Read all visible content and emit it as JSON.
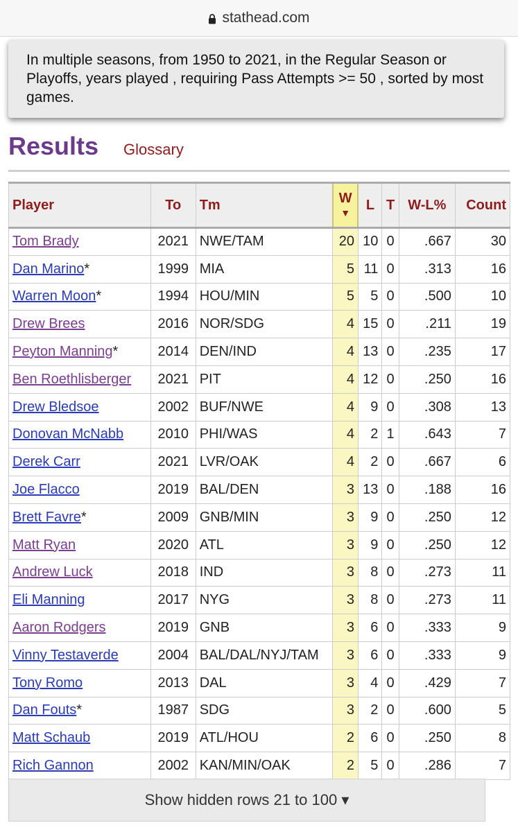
{
  "browser": {
    "domain": "stathead.com"
  },
  "summary": {
    "text": "In multiple seasons, from 1950 to 2021, in the Regular Season or Playoffs, years played , requiring Pass Attempts >= 50 , sorted by most games."
  },
  "heading": {
    "title": "Results",
    "glossary": "Glossary"
  },
  "table": {
    "columns": {
      "player": "Player",
      "to": "To",
      "tm": "Tm",
      "w": "W",
      "l": "L",
      "t": "T",
      "wl": "W-L%",
      "count": "Count"
    },
    "rows": [
      {
        "player": "Tom Brady",
        "hof": "",
        "to": "2021",
        "tm": "NWE/TAM",
        "w": "20",
        "l": "10",
        "t": "0",
        "wl": ".667",
        "count": "30"
      },
      {
        "player": "Dan Marino",
        "hof": "*",
        "to": "1999",
        "tm": "MIA",
        "w": "5",
        "l": "11",
        "t": "0",
        "wl": ".313",
        "count": "16"
      },
      {
        "player": "Warren Moon",
        "hof": "*",
        "to": "1994",
        "tm": "HOU/MIN",
        "w": "5",
        "l": "5",
        "t": "0",
        "wl": ".500",
        "count": "10"
      },
      {
        "player": "Drew Brees",
        "hof": "",
        "to": "2016",
        "tm": "NOR/SDG",
        "w": "4",
        "l": "15",
        "t": "0",
        "wl": ".211",
        "count": "19"
      },
      {
        "player": "Peyton Manning",
        "hof": "*",
        "to": "2014",
        "tm": "DEN/IND",
        "w": "4",
        "l": "13",
        "t": "0",
        "wl": ".235",
        "count": "17"
      },
      {
        "player": "Ben Roethlisberger",
        "hof": "",
        "to": "2021",
        "tm": "PIT",
        "w": "4",
        "l": "12",
        "t": "0",
        "wl": ".250",
        "count": "16"
      },
      {
        "player": "Drew Bledsoe",
        "hof": "",
        "to": "2002",
        "tm": "BUF/NWE",
        "w": "4",
        "l": "9",
        "t": "0",
        "wl": ".308",
        "count": "13"
      },
      {
        "player": "Donovan McNabb",
        "hof": "",
        "to": "2010",
        "tm": "PHI/WAS",
        "w": "4",
        "l": "2",
        "t": "1",
        "wl": ".643",
        "count": "7"
      },
      {
        "player": "Derek Carr",
        "hof": "",
        "to": "2021",
        "tm": "LVR/OAK",
        "w": "4",
        "l": "2",
        "t": "0",
        "wl": ".667",
        "count": "6"
      },
      {
        "player": "Joe Flacco",
        "hof": "",
        "to": "2019",
        "tm": "BAL/DEN",
        "w": "3",
        "l": "13",
        "t": "0",
        "wl": ".188",
        "count": "16"
      },
      {
        "player": "Brett Favre",
        "hof": "*",
        "to": "2009",
        "tm": "GNB/MIN",
        "w": "3",
        "l": "9",
        "t": "0",
        "wl": ".250",
        "count": "12"
      },
      {
        "player": "Matt Ryan",
        "hof": "",
        "to": "2020",
        "tm": "ATL",
        "w": "3",
        "l": "9",
        "t": "0",
        "wl": ".250",
        "count": "12"
      },
      {
        "player": "Andrew Luck",
        "hof": "",
        "to": "2018",
        "tm": "IND",
        "w": "3",
        "l": "8",
        "t": "0",
        "wl": ".273",
        "count": "11"
      },
      {
        "player": "Eli Manning",
        "hof": "",
        "to": "2017",
        "tm": "NYG",
        "w": "3",
        "l": "8",
        "t": "0",
        "wl": ".273",
        "count": "11"
      },
      {
        "player": "Aaron Rodgers",
        "hof": "",
        "to": "2019",
        "tm": "GNB",
        "w": "3",
        "l": "6",
        "t": "0",
        "wl": ".333",
        "count": "9"
      },
      {
        "player": "Vinny Testaverde",
        "hof": "",
        "to": "2004",
        "tm": "BAL/DAL/NYJ/TAM",
        "w": "3",
        "l": "6",
        "t": "0",
        "wl": ".333",
        "count": "9"
      },
      {
        "player": "Tony Romo",
        "hof": "",
        "to": "2013",
        "tm": "DAL",
        "w": "3",
        "l": "4",
        "t": "0",
        "wl": ".429",
        "count": "7"
      },
      {
        "player": "Dan Fouts",
        "hof": "*",
        "to": "1987",
        "tm": "SDG",
        "w": "3",
        "l": "2",
        "t": "0",
        "wl": ".600",
        "count": "5"
      },
      {
        "player": "Matt Schaub",
        "hof": "",
        "to": "2019",
        "tm": "ATL/HOU",
        "w": "2",
        "l": "6",
        "t": "0",
        "wl": ".250",
        "count": "8"
      },
      {
        "player": "Rich Gannon",
        "hof": "",
        "to": "2002",
        "tm": "KAN/MIN/OAK",
        "w": "2",
        "l": "5",
        "t": "0",
        "wl": ".286",
        "count": "7"
      }
    ]
  },
  "show_hidden": {
    "label": "Show hidden rows 21 to 100 ▾"
  },
  "colors": {
    "link": "#2a3bb3",
    "visited_link": "#7a3e8f",
    "header_text": "#8f1c1c",
    "results_heading": "#6c3a8a",
    "sort_highlight": "#f7f29e"
  },
  "icons": {
    "lock": "lock-icon",
    "sort": "sort-down-arrow-icon"
  }
}
